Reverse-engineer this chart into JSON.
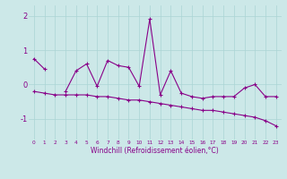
{
  "x": [
    0,
    1,
    2,
    3,
    4,
    5,
    6,
    7,
    8,
    9,
    10,
    11,
    12,
    13,
    14,
    15,
    16,
    17,
    18,
    19,
    20,
    21,
    22,
    23
  ],
  "y_jagged": [
    0.75,
    0.45,
    null,
    -0.2,
    0.4,
    0.6,
    -0.05,
    0.7,
    0.55,
    0.5,
    -0.05,
    1.9,
    -0.3,
    0.4,
    -0.25,
    -0.35,
    -0.4,
    -0.35,
    -0.35,
    -0.35,
    -0.1,
    0.0,
    -0.35,
    -0.35
  ],
  "y_trend": [
    -0.2,
    -0.25,
    -0.3,
    -0.3,
    -0.3,
    -0.3,
    -0.35,
    -0.35,
    -0.4,
    -0.45,
    -0.45,
    -0.5,
    -0.55,
    -0.6,
    -0.65,
    -0.7,
    -0.75,
    -0.75,
    -0.8,
    -0.85,
    -0.9,
    -0.95,
    -1.05,
    -1.2
  ],
  "line_color": "#880088",
  "bg_color": "#cce8e8",
  "grid_color": "#aad4d4",
  "ylim": [
    -1.6,
    2.3
  ],
  "yticks": [
    -1,
    0,
    1,
    2
  ],
  "xlabel": "Windchill (Refroidissement éolien,°C)"
}
